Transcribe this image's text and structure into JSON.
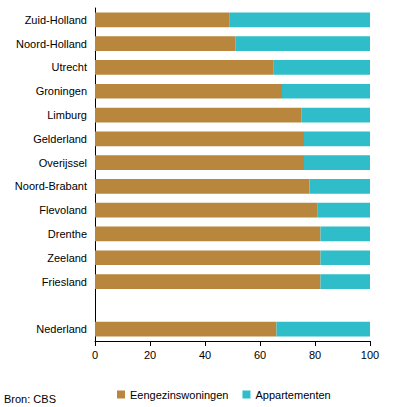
{
  "chart_data": {
    "type": "bar",
    "orientation": "horizontal",
    "stacked": true,
    "categories": [
      "Zuid-Holland",
      "Noord-Holland",
      "Utrecht",
      "Groningen",
      "Limburg",
      "Gelderland",
      "Overijssel",
      "Noord-Brabant",
      "Flevoland",
      "Drenthe",
      "Zeeland",
      "Friesland",
      null,
      "Nederland"
    ],
    "series": [
      {
        "name": "Eengezinswoningen",
        "color": "#b8873d",
        "values": [
          49,
          51,
          65,
          68,
          75,
          76,
          76,
          78,
          81,
          82,
          82,
          82,
          null,
          66
        ]
      },
      {
        "name": "Appartementen",
        "color": "#2fbdc9",
        "values": [
          51,
          49,
          35,
          32,
          25,
          24,
          24,
          22,
          19,
          18,
          18,
          18,
          null,
          34
        ]
      }
    ],
    "xlim": [
      0,
      100
    ],
    "xticks": [
      0,
      20,
      40,
      60,
      80,
      100
    ],
    "grid": false,
    "legend": "bottom",
    "source": "Bron: CBS"
  }
}
